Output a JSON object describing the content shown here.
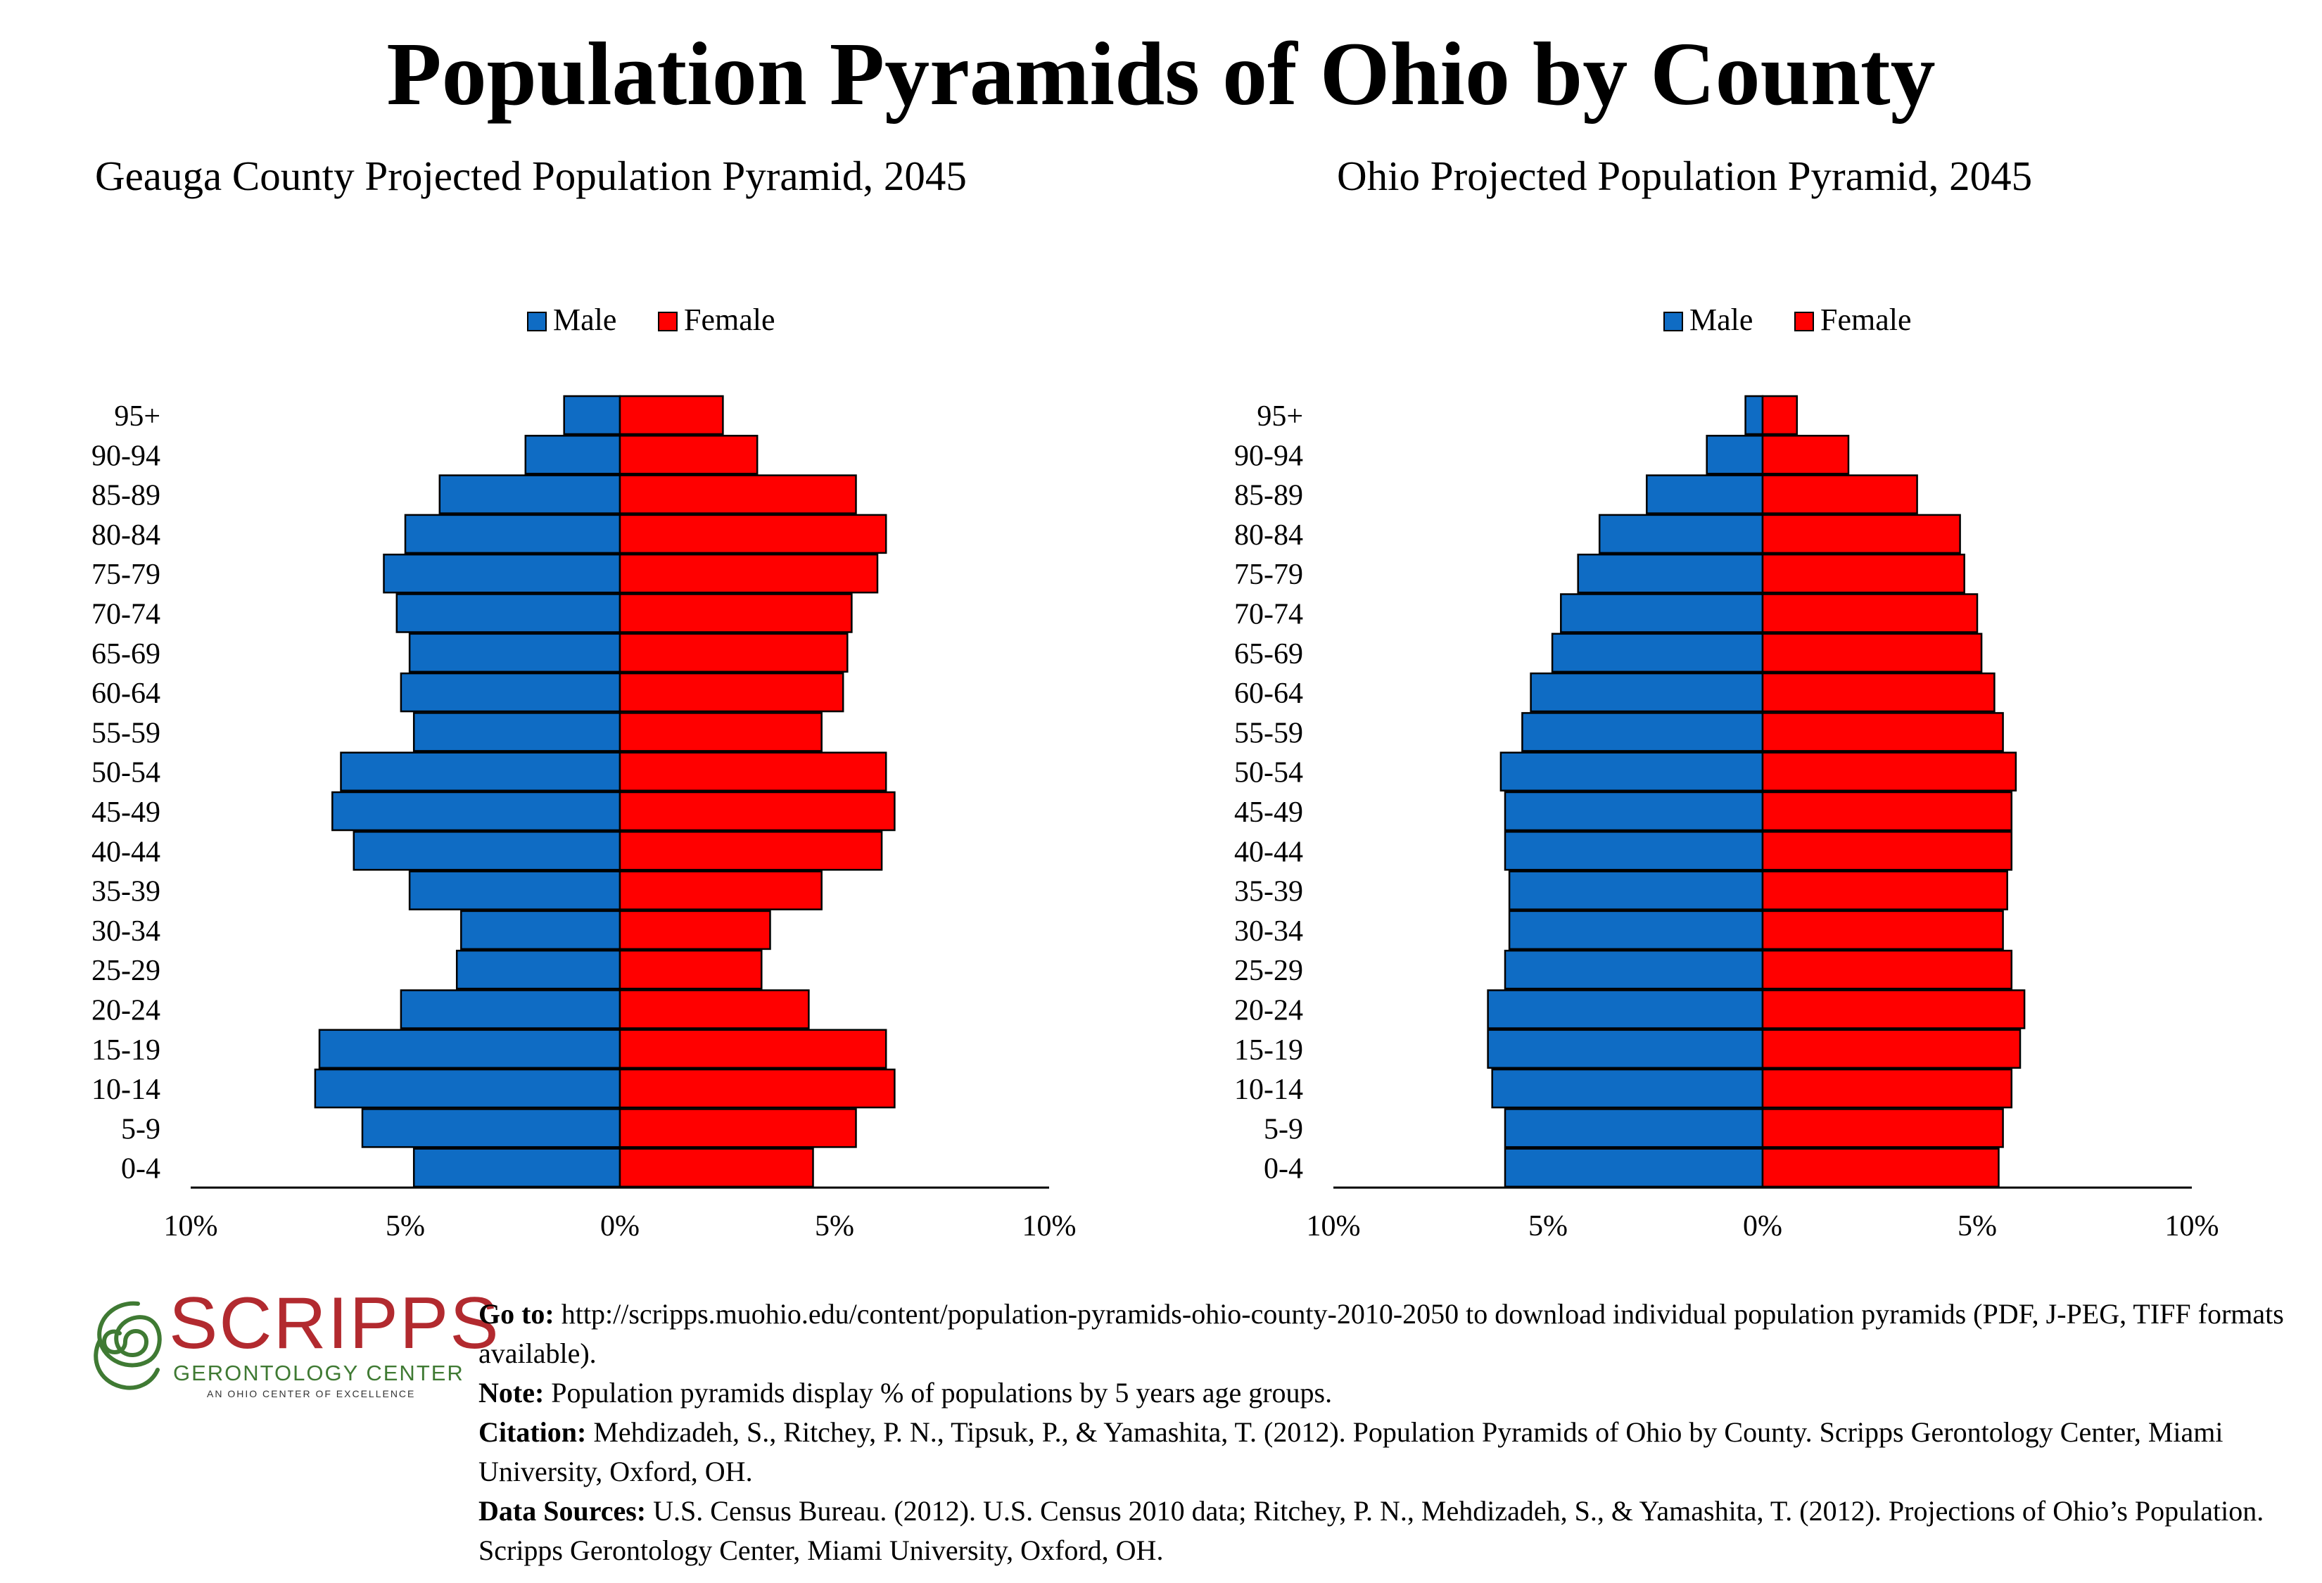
{
  "title": "Population Pyramids of Ohio by County",
  "colors": {
    "male": "#0F6CC4",
    "female": "#FF0000",
    "logo_red": "#b22a2f",
    "logo_green": "#3f7a33"
  },
  "legend": {
    "male": "Male",
    "female": "Female"
  },
  "age_groups": [
    "95+",
    "90-94",
    "85-89",
    "80-84",
    "75-79",
    "70-74",
    "65-69",
    "60-64",
    "55-59",
    "50-54",
    "45-49",
    "40-44",
    "35-39",
    "30-34",
    "25-29",
    "20-24",
    "15-19",
    "10-14",
    "5-9",
    "0-4"
  ],
  "x_ticks": [
    "10%",
    "5%",
    "0%",
    "5%",
    "10%"
  ],
  "chart_data": [
    {
      "type": "bar",
      "title": "Geauga County Projected Population Pyramid, 2045",
      "orientation": "horizontal-pyramid",
      "xlim": [
        -10,
        10
      ],
      "categories": [
        "95+",
        "90-94",
        "85-89",
        "80-84",
        "75-79",
        "70-74",
        "65-69",
        "60-64",
        "55-59",
        "50-54",
        "45-49",
        "40-44",
        "35-39",
        "30-34",
        "25-29",
        "20-24",
        "15-19",
        "10-14",
        "5-9",
        "0-4"
      ],
      "series": [
        {
          "name": "Male",
          "values": [
            1.3,
            2.2,
            4.2,
            5.0,
            5.5,
            5.2,
            4.9,
            5.1,
            4.8,
            6.5,
            6.7,
            6.2,
            4.9,
            3.7,
            3.8,
            5.1,
            7.0,
            7.1,
            6.0,
            4.8
          ]
        },
        {
          "name": "Female",
          "values": [
            2.4,
            3.2,
            5.5,
            6.2,
            6.0,
            5.4,
            5.3,
            5.2,
            4.7,
            6.2,
            6.4,
            6.1,
            4.7,
            3.5,
            3.3,
            4.4,
            6.2,
            6.4,
            5.5,
            4.5
          ]
        }
      ],
      "legend_position": "top-center"
    },
    {
      "type": "bar",
      "title": "Ohio Projected Population Pyramid, 2045",
      "orientation": "horizontal-pyramid",
      "xlim": [
        -10,
        10
      ],
      "categories": [
        "95+",
        "90-94",
        "85-89",
        "80-84",
        "75-79",
        "70-74",
        "65-69",
        "60-64",
        "55-59",
        "50-54",
        "45-49",
        "40-44",
        "35-39",
        "30-34",
        "25-29",
        "20-24",
        "15-19",
        "10-14",
        "5-9",
        "0-4"
      ],
      "series": [
        {
          "name": "Male",
          "values": [
            0.4,
            1.3,
            2.7,
            3.8,
            4.3,
            4.7,
            4.9,
            5.4,
            5.6,
            6.1,
            6.0,
            6.0,
            5.9,
            5.9,
            6.0,
            6.4,
            6.4,
            6.3,
            6.0,
            6.0
          ]
        },
        {
          "name": "Female",
          "values": [
            0.8,
            2.0,
            3.6,
            4.6,
            4.7,
            5.0,
            5.1,
            5.4,
            5.6,
            5.9,
            5.8,
            5.8,
            5.7,
            5.6,
            5.8,
            6.1,
            6.0,
            5.8,
            5.6,
            5.5
          ]
        }
      ],
      "legend_position": "top-center"
    }
  ],
  "logo": {
    "name": "SCRIPPS",
    "subtitle": "GERONTOLOGY CENTER",
    "tagline": "AN OHIO CENTER OF EXCELLENCE"
  },
  "notes": {
    "goto_label": "Go to:",
    "goto_text": " http://scripps.muohio.edu/content/population-pyramids-ohio-county-2010-2050 to download individual population pyramids (PDF, J-PEG, TIFF formats available).",
    "note_label": "Note:",
    "note_text": " Population pyramids display % of populations by 5 years age groups.",
    "citation_label": "Citation:",
    "citation_text": " Mehdizadeh, S., Ritchey, P. N., Tipsuk, P., & Yamashita, T. (2012). Population Pyramids of Ohio by County. Scripps Gerontology Center, Miami University, Oxford, OH.",
    "sources_label": "Data Sources:",
    "sources_text": " U.S. Census Bureau. (2012). U.S. Census 2010 data; Ritchey, P. N., Mehdizadeh, S., & Yamashita, T. (2012). Projections of Ohio’s Population. Scripps Gerontology Center, Miami University, Oxford, OH."
  }
}
